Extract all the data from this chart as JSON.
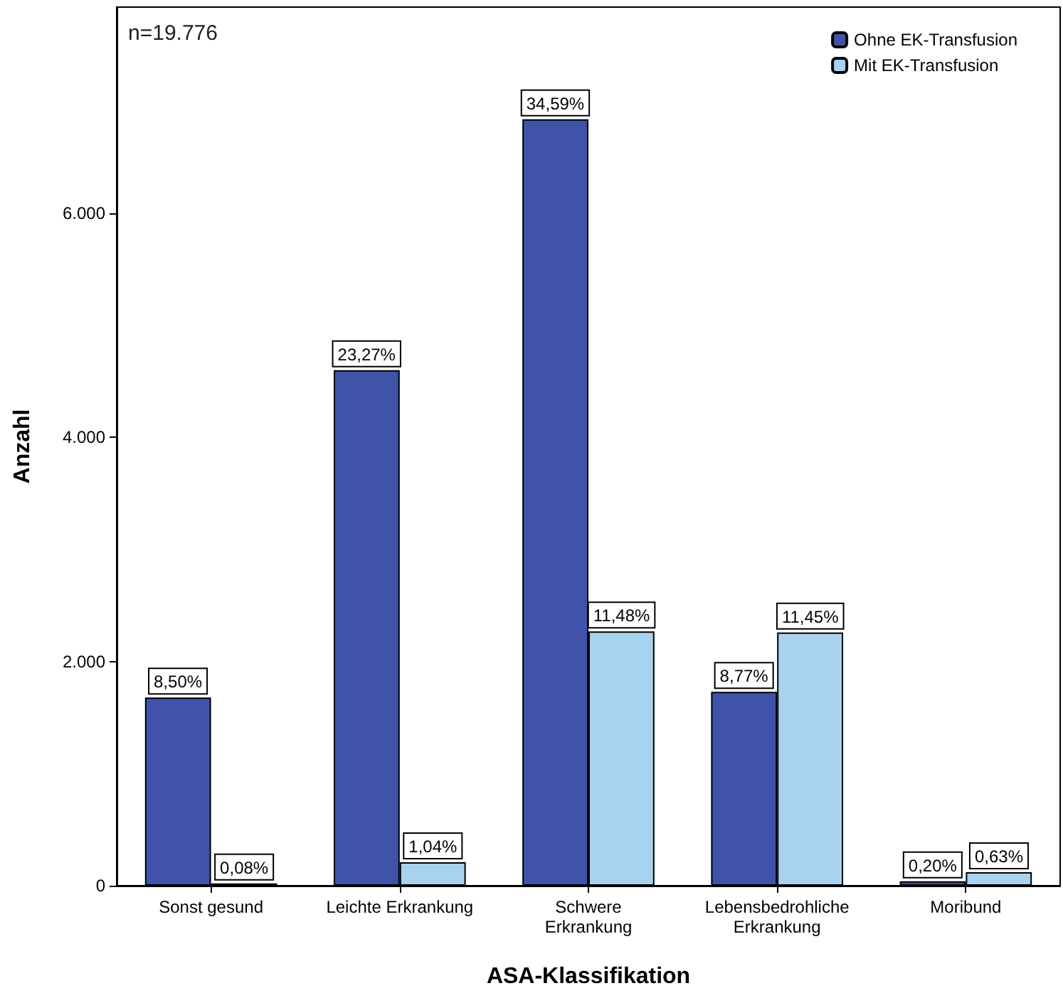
{
  "chart_data": {
    "type": "bar",
    "xlabel": "ASA-Klassifikation",
    "ylabel": "Anzahl",
    "categories": [
      "Sonst gesund",
      "Leichte Erkrankung",
      "Schwere\nErkrankung",
      "Lebensbedrohliche\nErkrankung",
      "Moribund"
    ],
    "series": [
      {
        "name": "Ohne EK-Transfusion",
        "color": "#3e53a9",
        "values": [
          1680,
          4600,
          6840,
          1730,
          40
        ]
      },
      {
        "name": "Mit EK-Transfusion",
        "color": "#a9d1f0",
        "values": [
          20,
          210,
          2270,
          2260,
          120
        ]
      }
    ],
    "ylim": [
      0,
      7840
    ],
    "yticks": [
      {
        "value": 0,
        "label": "0"
      },
      {
        "value": 2000,
        "label": "2.000"
      },
      {
        "value": 4000,
        "label": "4.000"
      },
      {
        "value": 6000,
        "label": "6.000"
      }
    ],
    "grid": false,
    "legend": "top right",
    "annotations": [
      "n=19.776",
      {
        "text": "8,50%",
        "x": "Sonst gesund",
        "y": 1680
      },
      {
        "text": "23,27%",
        "x": "Leichte Erkrankung",
        "y": 4600
      },
      {
        "text": "34,59%",
        "x": "Schwere\nErkrankung",
        "y": 6840
      },
      {
        "text": "8,77%",
        "x": "Lebensbedrohliche\nErkrankung",
        "y": 1730
      },
      {
        "text": "0,20%",
        "x": "Moribund",
        "y": 40
      },
      {
        "text": "0,08%",
        "x": "Sonst gesund",
        "y": 20
      },
      {
        "text": "1,04%",
        "x": "Leichte Erkrankung",
        "y": 210
      },
      {
        "text": "11,48%",
        "x": "Schwere\nErkrankung",
        "y": 2270
      },
      {
        "text": "11,45%",
        "x": "Lebensbedrohliche\nErkrankung",
        "y": 2260
      },
      {
        "text": "0,63%",
        "x": "Moribund",
        "y": 120
      }
    ]
  }
}
